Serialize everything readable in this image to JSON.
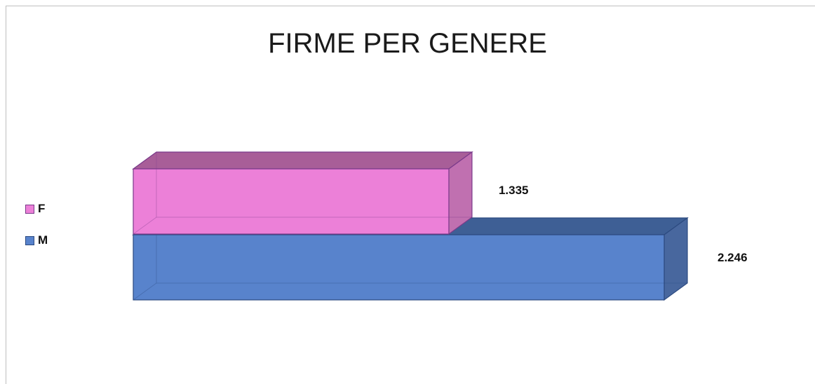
{
  "chart_data": {
    "type": "bar",
    "orientation": "horizontal",
    "three_d": true,
    "title": "FIRME PER GENERE",
    "categories": [
      "F",
      "M"
    ],
    "values": [
      1335,
      2246
    ],
    "value_labels": [
      "1.335",
      "2.246"
    ],
    "colors": {
      "F": {
        "front": "#ec80d8",
        "top": "#a85e98",
        "side": "#c070b0",
        "edge": "#7a3a8a"
      },
      "M": {
        "front": "#5883cc",
        "top": "#3e5f95",
        "side": "#48679e",
        "edge": "#2c4a80"
      }
    },
    "legend": {
      "position": "left",
      "entries": [
        "F",
        "M"
      ]
    },
    "grid": false,
    "xlim": [
      0,
      2246
    ]
  }
}
